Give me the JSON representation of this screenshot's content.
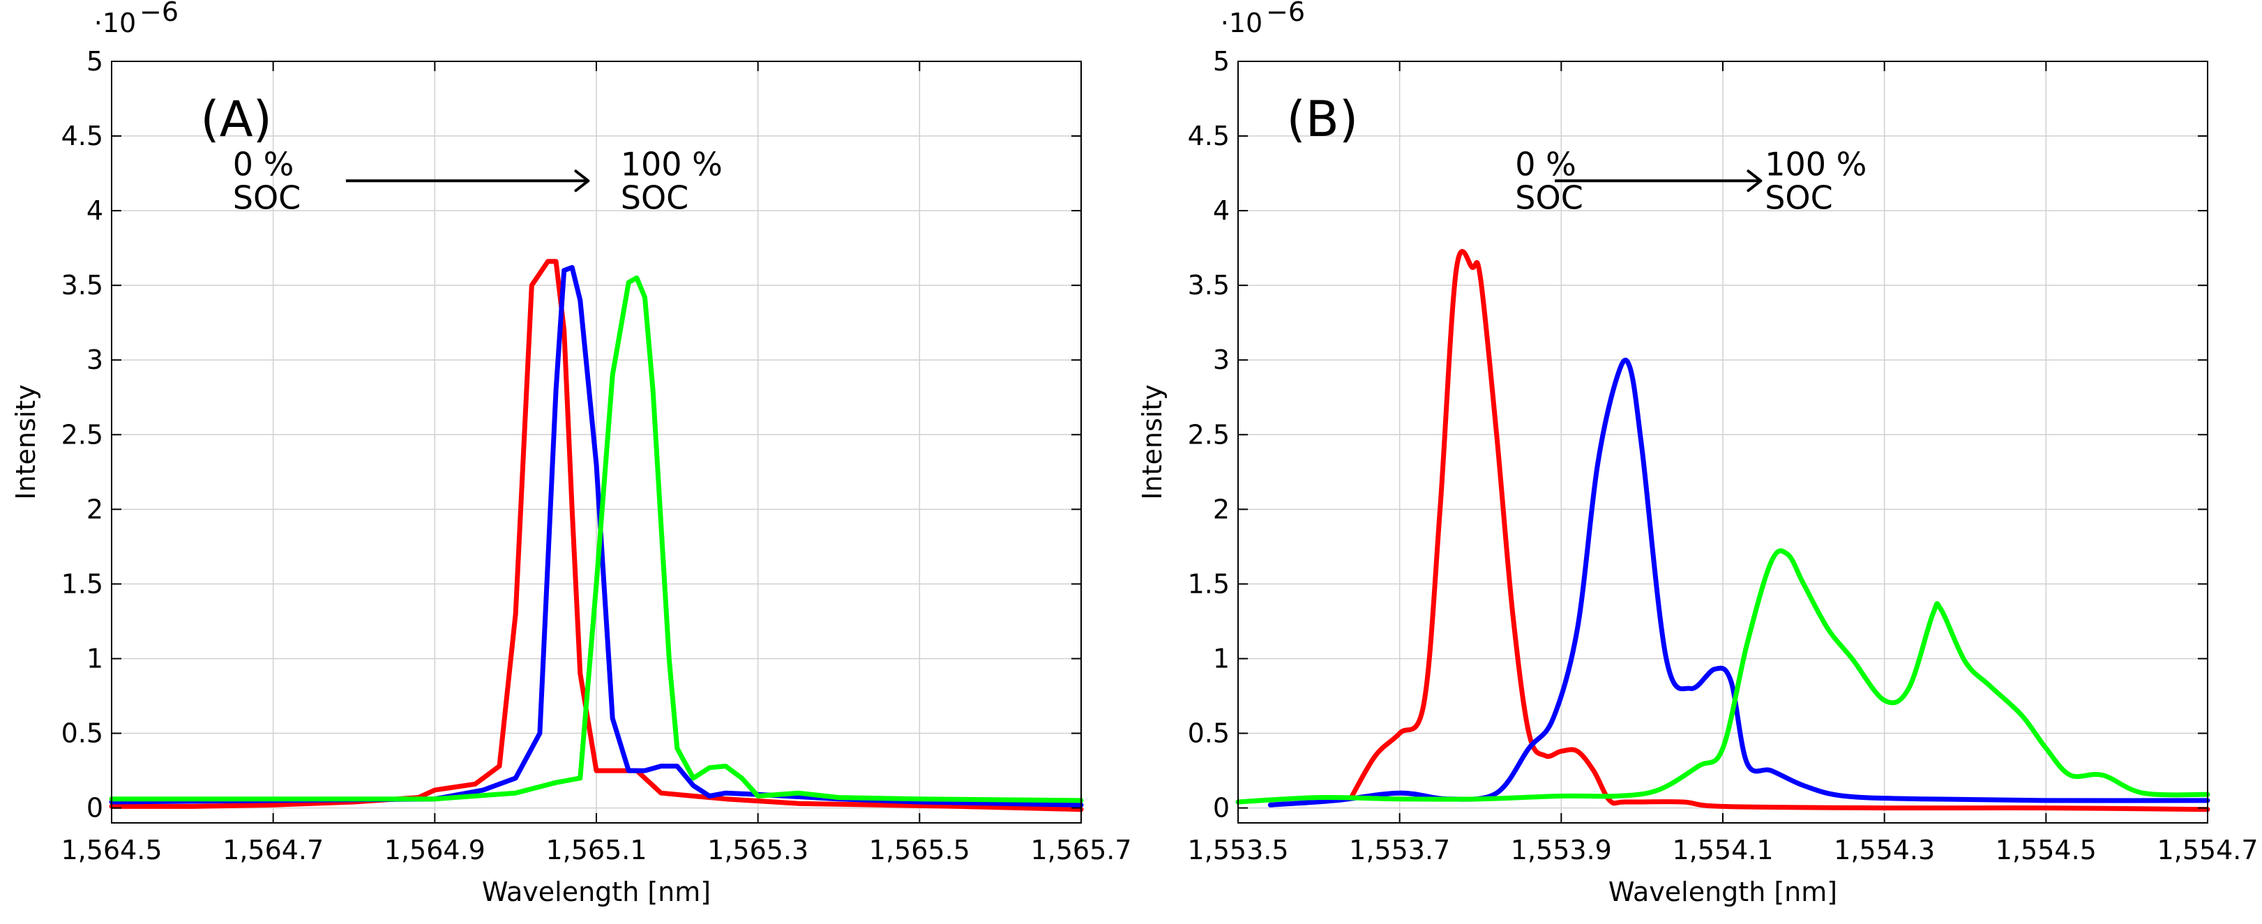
{
  "chart_data": [
    {
      "type": "line",
      "panel_label": "(A)",
      "xlabel": "Wavelength [nm]",
      "ylabel": "Intensity",
      "y_scale_label": "·10",
      "y_scale_exponent": "−6",
      "xlim": [
        1564.5,
        1565.7
      ],
      "ylim": [
        -0.1,
        5
      ],
      "x_ticks": [
        1564.5,
        1564.7,
        1564.9,
        1565.1,
        1565.3,
        1565.5,
        1565.7
      ],
      "x_tick_labels": [
        "1,564.5",
        "1,564.7",
        "1,564.9",
        "1,565.1",
        "1,565.3",
        "1,565.5",
        "1,565.7"
      ],
      "y_ticks": [
        0,
        0.5,
        1,
        1.5,
        2,
        2.5,
        3,
        3.5,
        4,
        4.5,
        5
      ],
      "y_tick_labels": [
        "0",
        "0.5",
        "1",
        "1.5",
        "2",
        "2.5",
        "3",
        "3.5",
        "4",
        "4.5",
        "5"
      ],
      "annotation": {
        "start_pct": "0  %",
        "start_label": "SOC",
        "end_pct": "100  %",
        "end_label": "SOC",
        "arrow_from": [
          1564.79,
          4.2
        ],
        "arrow_to": [
          1565.09,
          4.2
        ],
        "start_text_pos": [
          1564.65,
          4.2
        ],
        "end_text_pos": [
          1565.13,
          4.2
        ],
        "panel_label_pos": [
          1564.61,
          4.5
        ]
      },
      "series": [
        {
          "name": "red",
          "color": "#ff0000",
          "x": [
            1564.5,
            1564.6,
            1564.7,
            1564.8,
            1564.88,
            1564.9,
            1564.95,
            1564.98,
            1565.0,
            1565.02,
            1565.04,
            1565.05,
            1565.06,
            1565.07,
            1565.08,
            1565.1,
            1565.15,
            1565.18,
            1565.22,
            1565.26,
            1565.35,
            1565.45,
            1565.55,
            1565.7
          ],
          "y": [
            0.01,
            0.01,
            0.02,
            0.04,
            0.07,
            0.12,
            0.16,
            0.28,
            1.3,
            3.5,
            3.66,
            3.66,
            3.2,
            2.0,
            0.9,
            0.25,
            0.25,
            0.1,
            0.08,
            0.06,
            0.03,
            0.02,
            0.01,
            -0.01
          ]
        },
        {
          "name": "blue",
          "color": "#0000ff",
          "x": [
            1564.5,
            1564.7,
            1564.9,
            1564.96,
            1565.0,
            1565.03,
            1565.05,
            1565.06,
            1565.07,
            1565.08,
            1565.1,
            1565.12,
            1565.14,
            1565.16,
            1565.18,
            1565.2,
            1565.22,
            1565.24,
            1565.26,
            1565.3,
            1565.4,
            1565.5,
            1565.7
          ],
          "y": [
            0.04,
            0.05,
            0.06,
            0.12,
            0.2,
            0.5,
            2.8,
            3.6,
            3.62,
            3.4,
            2.3,
            0.6,
            0.25,
            0.25,
            0.28,
            0.28,
            0.15,
            0.08,
            0.1,
            0.09,
            0.06,
            0.04,
            0.02
          ]
        },
        {
          "name": "green",
          "color": "#00ff00",
          "x": [
            1564.5,
            1564.7,
            1564.9,
            1565.0,
            1565.05,
            1565.08,
            1565.1,
            1565.12,
            1565.14,
            1565.15,
            1565.16,
            1565.17,
            1565.19,
            1565.2,
            1565.22,
            1565.24,
            1565.26,
            1565.28,
            1565.3,
            1565.35,
            1565.4,
            1565.5,
            1565.7
          ],
          "y": [
            0.06,
            0.06,
            0.06,
            0.1,
            0.17,
            0.2,
            1.5,
            2.9,
            3.52,
            3.55,
            3.42,
            2.8,
            1.0,
            0.4,
            0.2,
            0.27,
            0.28,
            0.2,
            0.08,
            0.1,
            0.07,
            0.06,
            0.05
          ]
        }
      ]
    },
    {
      "type": "line",
      "panel_label": "(B)",
      "xlabel": "Wavelength [nm]",
      "ylabel": "Intensity",
      "y_scale_label": "·10",
      "y_scale_exponent": "−6",
      "xlim": [
        1553.5,
        1554.7
      ],
      "ylim": [
        -0.1,
        5
      ],
      "x_ticks": [
        1553.5,
        1553.7,
        1553.9,
        1554.1,
        1554.3,
        1554.5,
        1554.7
      ],
      "x_tick_labels": [
        "1,553.5",
        "1,553.7",
        "1,553.9",
        "1,554.1",
        "1,554.3",
        "1,554.5",
        "1,554.7"
      ],
      "y_ticks": [
        0,
        0.5,
        1,
        1.5,
        2,
        2.5,
        3,
        3.5,
        4,
        4.5,
        5
      ],
      "y_tick_labels": [
        "0",
        "0.5",
        "1",
        "1.5",
        "2",
        "2.5",
        "3",
        "3.5",
        "4",
        "4.5",
        "5"
      ],
      "annotation": {
        "start_pct": "0  %",
        "start_label": "SOC",
        "end_pct": "100  %",
        "end_label": "SOC",
        "arrow_from": [
          1553.892,
          4.2
        ],
        "arrow_to": [
          1554.147,
          4.2
        ],
        "start_text_pos": [
          1553.843,
          4.2
        ],
        "end_text_pos": [
          1554.152,
          4.2
        ],
        "panel_label_pos": [
          1553.56,
          4.5
        ]
      },
      "series": [
        {
          "name": "red",
          "color": "#ff0000",
          "x": [
            1553.64,
            1553.67,
            1553.7,
            1553.73,
            1553.75,
            1553.77,
            1553.79,
            1553.8,
            1553.82,
            1553.84,
            1553.86,
            1553.88,
            1553.9,
            1553.92,
            1553.94,
            1553.96,
            1553.98,
            1554.05,
            1554.1,
            1554.3,
            1554.5,
            1554.7
          ],
          "y": [
            0.07,
            0.35,
            0.5,
            0.7,
            2.0,
            3.6,
            3.62,
            3.55,
            2.5,
            1.3,
            0.5,
            0.35,
            0.38,
            0.38,
            0.25,
            0.05,
            0.04,
            0.04,
            0.01,
            0.0,
            0.0,
            -0.01
          ],
          "smooth": true
        },
        {
          "name": "blue",
          "color": "#0000ff",
          "x": [
            1553.54,
            1553.62,
            1553.7,
            1553.76,
            1553.82,
            1553.86,
            1553.89,
            1553.92,
            1553.945,
            1553.97,
            1553.985,
            1554.0,
            1554.03,
            1554.06,
            1554.09,
            1554.11,
            1554.13,
            1554.16,
            1554.2,
            1554.25,
            1554.35,
            1554.5,
            1554.7
          ],
          "y": [
            0.02,
            0.05,
            0.1,
            0.06,
            0.1,
            0.4,
            0.6,
            1.2,
            2.3,
            2.9,
            2.95,
            2.4,
            1.0,
            0.8,
            0.93,
            0.85,
            0.3,
            0.25,
            0.15,
            0.08,
            0.06,
            0.05,
            0.05
          ],
          "smooth": true
        },
        {
          "name": "green",
          "color": "#00ff00",
          "x": [
            1553.5,
            1553.6,
            1553.7,
            1553.8,
            1553.9,
            1553.97,
            1554.02,
            1554.07,
            1554.1,
            1554.13,
            1554.16,
            1554.18,
            1554.2,
            1554.23,
            1554.26,
            1554.3,
            1554.33,
            1554.36,
            1554.37,
            1554.4,
            1554.43,
            1554.47,
            1554.5,
            1554.53,
            1554.57,
            1554.62,
            1554.7
          ],
          "y": [
            0.04,
            0.07,
            0.06,
            0.06,
            0.08,
            0.08,
            0.12,
            0.28,
            0.4,
            1.1,
            1.65,
            1.7,
            1.5,
            1.2,
            1.0,
            0.72,
            0.8,
            1.3,
            1.33,
            0.98,
            0.82,
            0.62,
            0.4,
            0.22,
            0.22,
            0.1,
            0.09
          ],
          "smooth": true
        }
      ]
    }
  ]
}
